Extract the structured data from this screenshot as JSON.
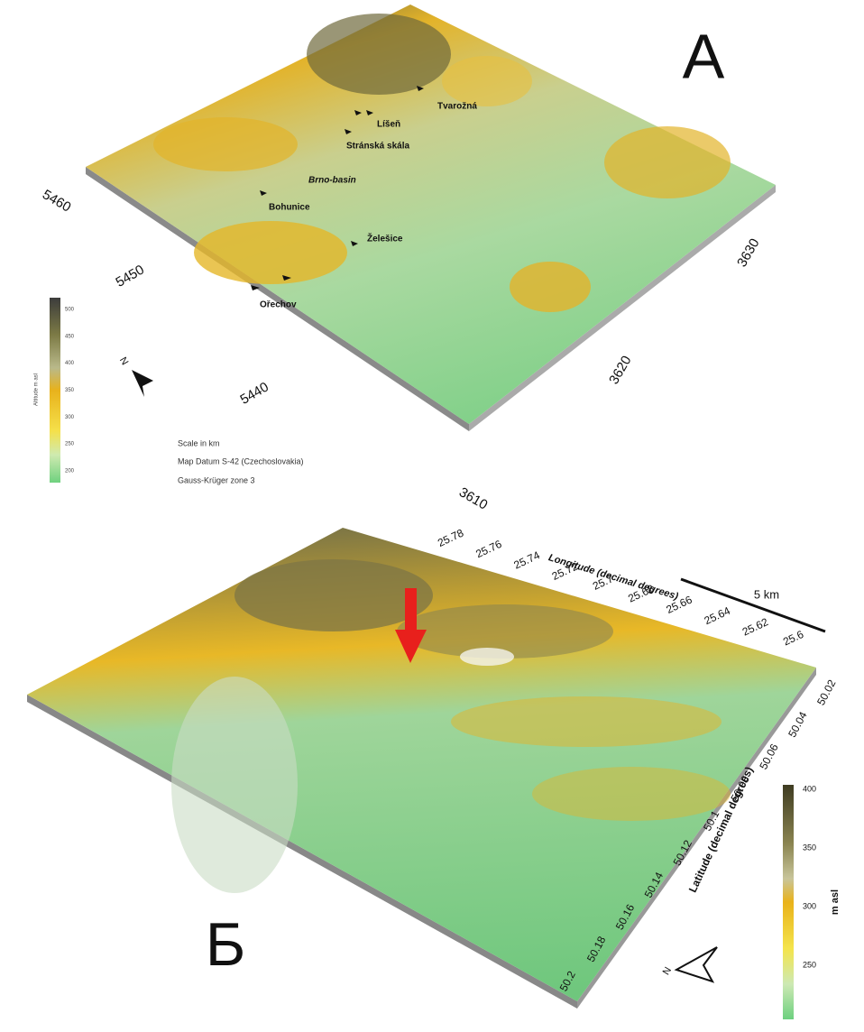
{
  "panel_a": {
    "label": "A",
    "places": [
      "Tvarožná",
      "Líšeň",
      "Stránská skála",
      "Brno-basin",
      "Bohunice",
      "Želešice",
      "Ořechov"
    ],
    "northing_ticks": [
      5460,
      5450,
      5440
    ],
    "easting_ticks": [
      3610,
      3620,
      3630
    ],
    "legend": {
      "title": "Altitude m asl",
      "ticks": [
        500,
        450,
        400,
        350,
        300,
        250,
        200
      ]
    },
    "north": "N",
    "notes": [
      "Scale in km",
      "Map Datum S-42 (Czechoslovakia)",
      "Gauss-Krüger zone 3"
    ]
  },
  "panel_b": {
    "label": "Б",
    "longitude_title": "Longitude (decimal degrees)",
    "longitude_ticks": [
      25.78,
      25.76,
      25.74,
      25.72,
      25.7,
      25.68,
      25.66,
      25.64,
      25.62,
      25.6
    ],
    "scale": "5 km",
    "latitude_title": "Latitude (decimal degrees)",
    "latitude_ticks": [
      50.02,
      50.04,
      50.06,
      50.08,
      50.1,
      50.12,
      50.14,
      50.16,
      50.18,
      50.2
    ],
    "legend": {
      "title": "m asl",
      "ticks": [
        400,
        350,
        300,
        250
      ]
    },
    "north": "N"
  }
}
